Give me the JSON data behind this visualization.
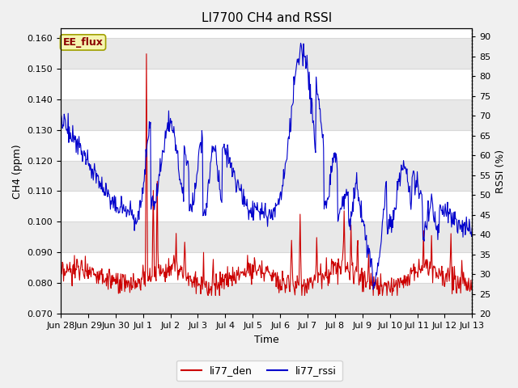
{
  "title": "LI7700 CH4 and RSSI",
  "xlabel": "Time",
  "ylabel_left": "CH4 (ppm)",
  "ylabel_right": "RSSI (%)",
  "ylim_left": [
    0.07,
    0.163
  ],
  "ylim_right": [
    20,
    92
  ],
  "yticks_left": [
    0.07,
    0.08,
    0.09,
    0.1,
    0.11,
    0.12,
    0.13,
    0.14,
    0.15,
    0.16
  ],
  "yticks_right": [
    20,
    25,
    30,
    35,
    40,
    45,
    50,
    55,
    60,
    65,
    70,
    75,
    80,
    85,
    90
  ],
  "annotation": "EE_flux",
  "line1_color": "#cc0000",
  "line1_label": "li77_den",
  "line2_color": "#0000cc",
  "line2_label": "li77_rssi",
  "line_width": 0.8,
  "plot_bg_color": "#ffffff",
  "fig_bg_color": "#f0f0f0",
  "grid_color": "#d8d8d8",
  "title_fontsize": 11,
  "label_fontsize": 9,
  "tick_fontsize": 8,
  "annot_fontsize": 9,
  "legend_fontsize": 9
}
